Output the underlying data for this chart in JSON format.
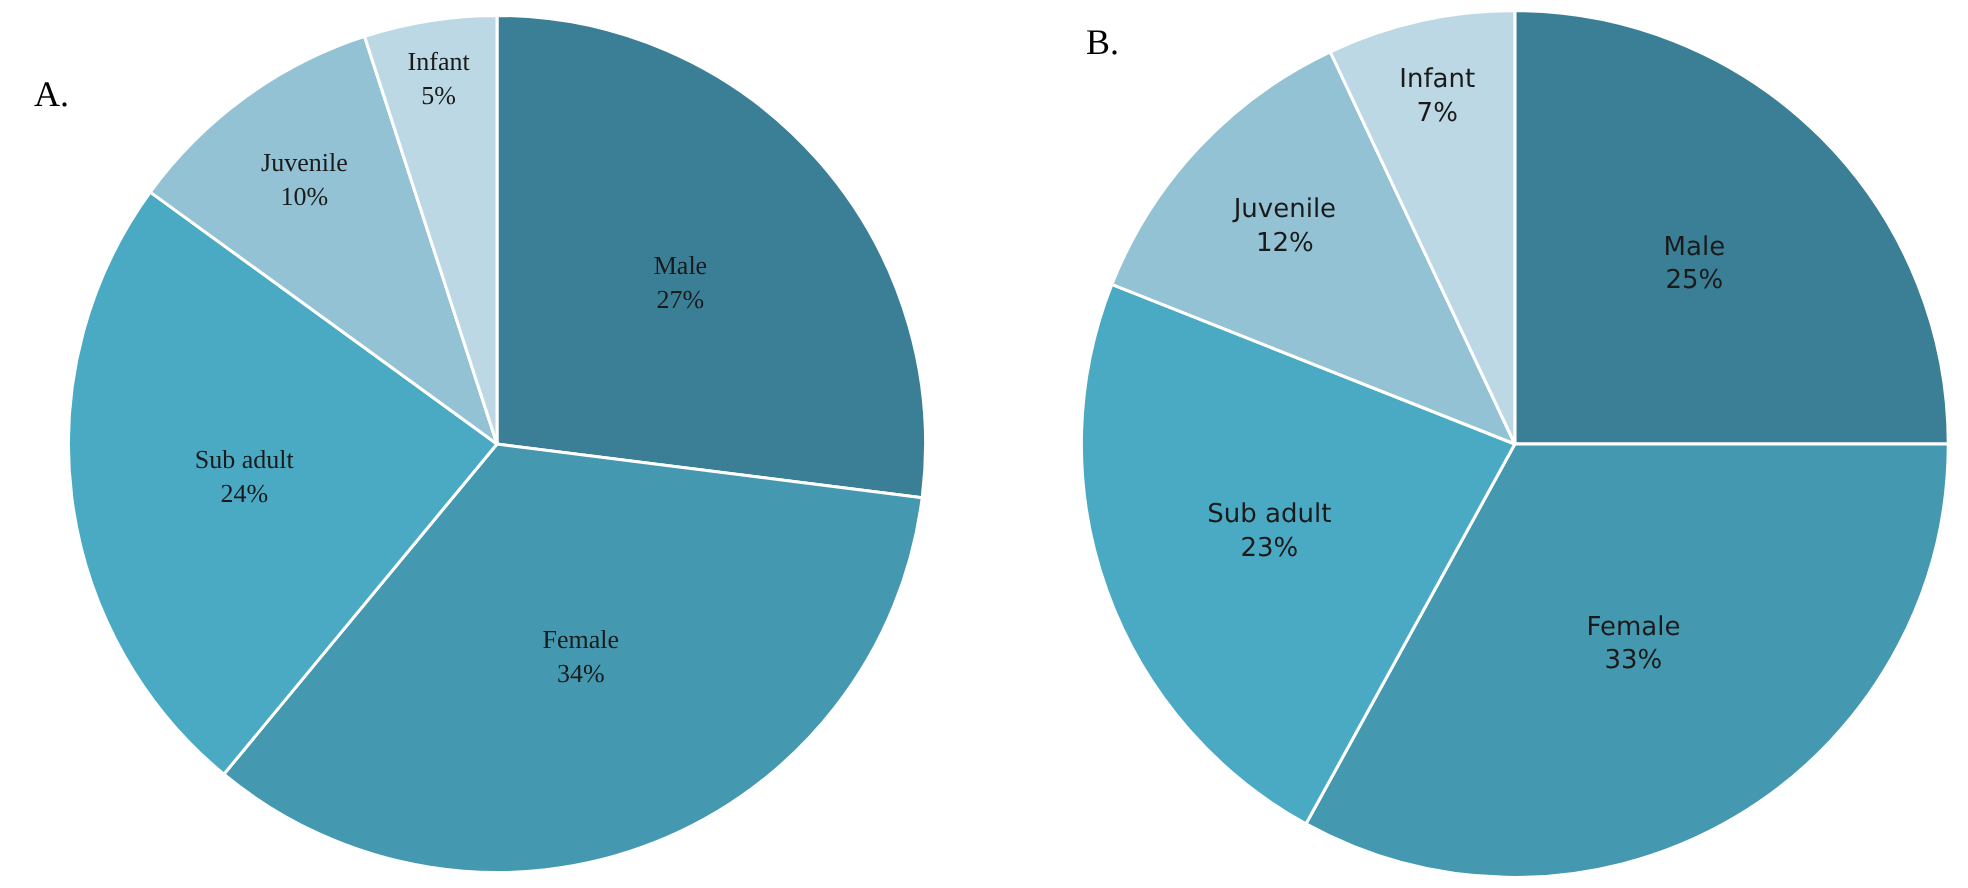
{
  "chart_data": [
    {
      "type": "pie",
      "title": "A.",
      "categories": [
        "Male",
        "Female",
        "Sub adult",
        "Juvenile",
        "Infant"
      ],
      "values": [
        27,
        34,
        24,
        10,
        5
      ],
      "value_labels": [
        "27%",
        "34%",
        "24%",
        "10%",
        "5%"
      ],
      "colors": [
        "#3a7f95",
        "#4499b0",
        "#4aaac4",
        "#92c2d4",
        "#bcd8e4"
      ]
    },
    {
      "type": "pie",
      "title": "B.",
      "categories": [
        "Male",
        "Female",
        "Sub adult",
        "Juvenile",
        "Infant"
      ],
      "values": [
        25,
        33,
        23,
        12,
        7
      ],
      "value_labels": [
        "25%",
        "33%",
        "23%",
        "12%",
        "7%"
      ],
      "colors": [
        "#3a7f95",
        "#4499b0",
        "#4aaac4",
        "#92c2d4",
        "#bcd8e4"
      ]
    }
  ]
}
